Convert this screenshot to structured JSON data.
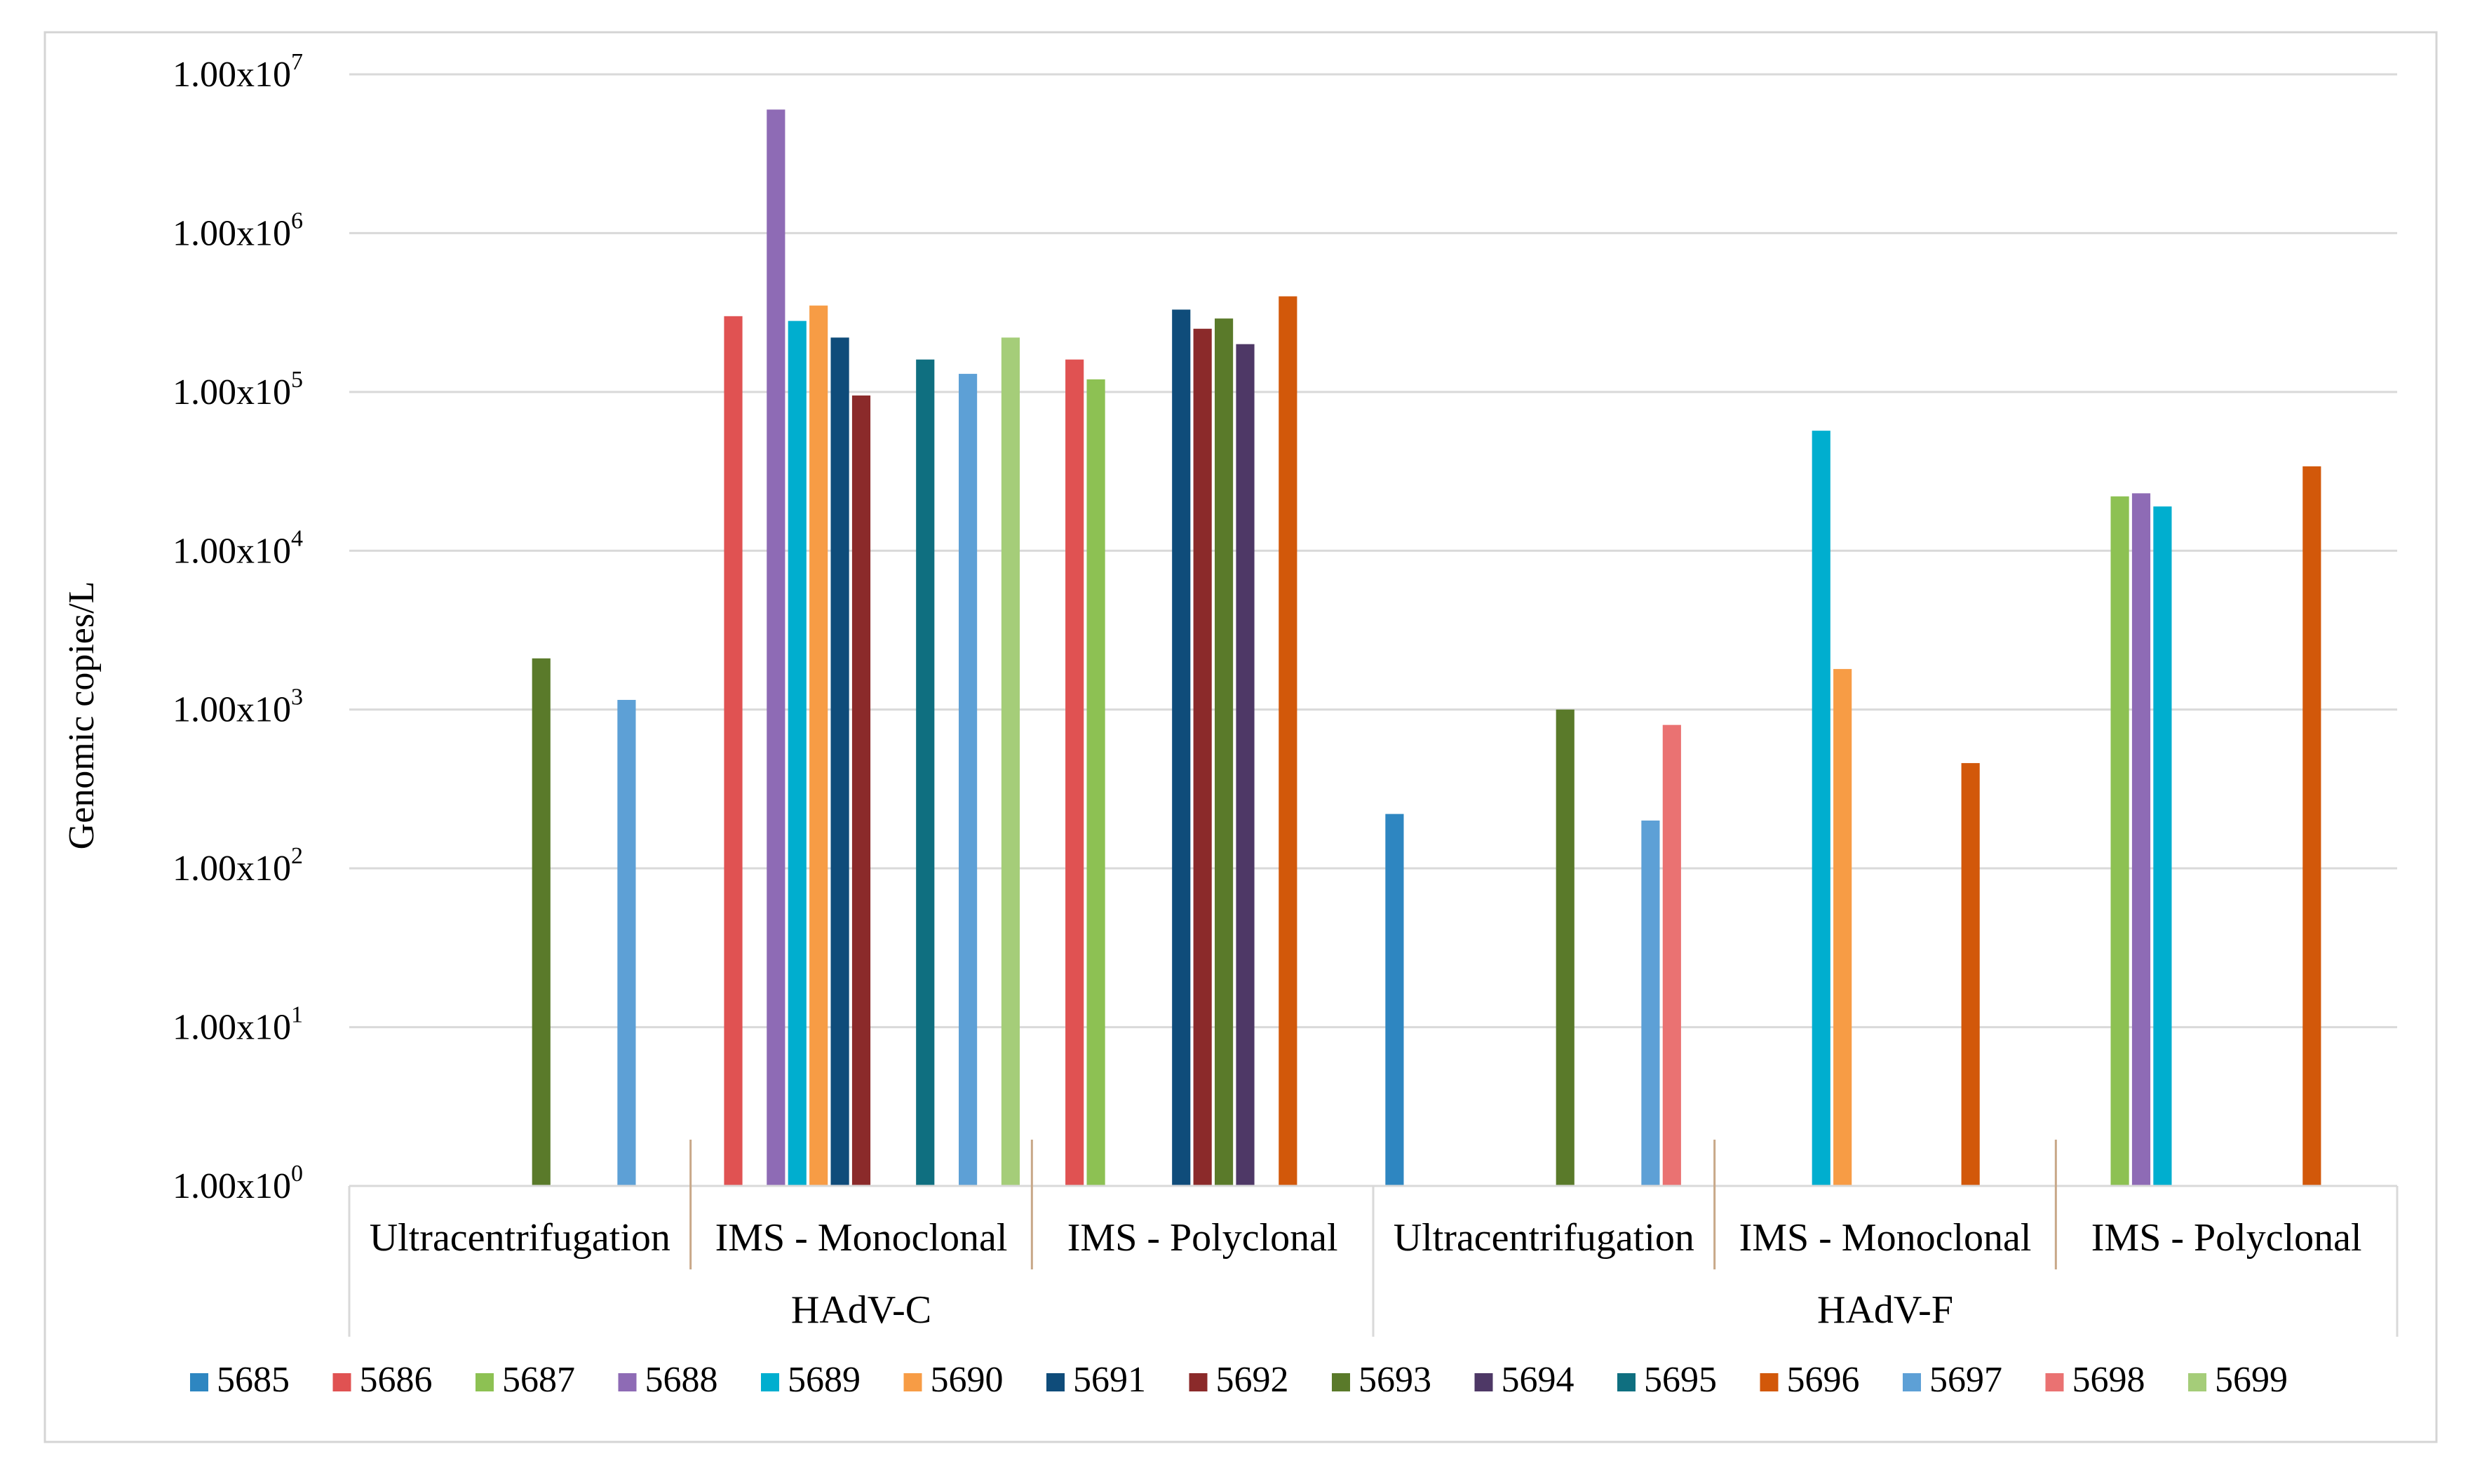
{
  "chart_data": {
    "type": "bar",
    "title": "",
    "xlabel": "",
    "ylabel": "Genomic copies/L",
    "yscale": "log",
    "ylim": [
      1,
      10000000
    ],
    "grid": true,
    "legend_position": "bottom",
    "y_ticks": [
      {
        "base": "1.00x10",
        "exp": "0"
      },
      {
        "base": "1.00x10",
        "exp": "1"
      },
      {
        "base": "1.00x10",
        "exp": "2"
      },
      {
        "base": "1.00x10",
        "exp": "3"
      },
      {
        "base": "1.00x10",
        "exp": "4"
      },
      {
        "base": "1.00x10",
        "exp": "5"
      },
      {
        "base": "1.00x10",
        "exp": "6"
      },
      {
        "base": "1.00x10",
        "exp": "7"
      }
    ],
    "groups": [
      {
        "name": "HAdV-C",
        "categories": [
          "Ultracentrifugation",
          "IMS - Monoclonal",
          "IMS - Polyclonal"
        ]
      },
      {
        "name": "HAdV-F",
        "categories": [
          "Ultracentrifugation",
          "IMS - Monoclonal",
          "IMS - Polyclonal"
        ]
      }
    ],
    "series": [
      {
        "name": "5685",
        "color": "#2E86C1",
        "values": [
          null,
          null,
          null,
          220,
          null,
          null
        ]
      },
      {
        "name": "5686",
        "color": "#E05252",
        "values": [
          null,
          300000,
          160000,
          null,
          null,
          null
        ]
      },
      {
        "name": "5687",
        "color": "#8DC153",
        "values": [
          null,
          null,
          120000,
          null,
          null,
          22000
        ]
      },
      {
        "name": "5688",
        "color": "#8E6BB5",
        "values": [
          null,
          6000000,
          null,
          null,
          null,
          23000
        ]
      },
      {
        "name": "5689",
        "color": "#00AECF",
        "values": [
          null,
          280000,
          null,
          null,
          57000,
          19000
        ]
      },
      {
        "name": "5690",
        "color": "#F79C45",
        "values": [
          null,
          350000,
          null,
          null,
          1800,
          null
        ]
      },
      {
        "name": "5691",
        "color": "#0F4C7A",
        "values": [
          null,
          220000,
          330000,
          null,
          null,
          null
        ]
      },
      {
        "name": "5692",
        "color": "#8B2A2A",
        "values": [
          null,
          95000,
          250000,
          null,
          null,
          null
        ]
      },
      {
        "name": "5693",
        "color": "#5A7A2A",
        "values": [
          2100,
          null,
          290000,
          1000,
          null,
          null
        ]
      },
      {
        "name": "5694",
        "color": "#4E3866",
        "values": [
          null,
          null,
          200000,
          null,
          null,
          null
        ]
      },
      {
        "name": "5695",
        "color": "#0F6F80",
        "values": [
          null,
          160000,
          null,
          null,
          null,
          null
        ]
      },
      {
        "name": "5696",
        "color": "#D2580A",
        "values": [
          null,
          null,
          400000,
          null,
          460,
          34000
        ]
      },
      {
        "name": "5697",
        "color": "#5DA0D6",
        "values": [
          1150,
          130000,
          null,
          200,
          null,
          null
        ]
      },
      {
        "name": "5698",
        "color": "#EA7272",
        "values": [
          null,
          null,
          null,
          800,
          null,
          null
        ]
      },
      {
        "name": "5699",
        "color": "#A5CD79",
        "values": [
          null,
          220000,
          null,
          null,
          null,
          null
        ]
      }
    ]
  }
}
